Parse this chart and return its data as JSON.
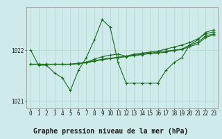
{
  "title": "Graphe pression niveau de la mer (hPa)",
  "background_color": "#ceeaea",
  "label_bg_color": "#a8d8c8",
  "line_color": "#1a6b1a",
  "ylim": [
    1020.85,
    1022.85
  ],
  "xlim": [
    -0.5,
    23.5
  ],
  "yticks": [
    1021,
    1022
  ],
  "xticks": [
    0,
    1,
    2,
    3,
    4,
    5,
    6,
    7,
    8,
    9,
    10,
    11,
    12,
    13,
    14,
    15,
    16,
    17,
    18,
    19,
    20,
    21,
    22,
    23
  ],
  "series": [
    {
      "x": [
        0,
        1,
        2,
        3,
        4,
        5,
        6,
        7,
        8,
        9,
        10,
        11,
        12,
        13,
        14,
        15,
        16,
        17,
        18,
        19,
        20,
        21,
        22,
        23
      ],
      "y": [
        1022.0,
        1021.7,
        1021.7,
        1021.55,
        1021.45,
        1021.2,
        1021.6,
        1021.85,
        1022.2,
        1022.6,
        1022.45,
        1021.75,
        1021.35,
        1021.35,
        1021.35,
        1021.35,
        1021.35,
        1021.6,
        1021.75,
        1021.85,
        1022.1,
        1022.2,
        1022.35,
        1022.4
      ]
    },
    {
      "x": [
        0,
        1,
        2,
        3,
        4,
        5,
        6,
        7,
        8,
        9,
        10,
        11,
        12,
        13,
        14,
        15,
        16,
        17,
        18,
        19,
        20,
        21,
        22,
        23
      ],
      "y": [
        1021.72,
        1021.72,
        1021.72,
        1021.72,
        1021.72,
        1021.72,
        1021.74,
        1021.76,
        1021.79,
        1021.82,
        1021.84,
        1021.86,
        1021.88,
        1021.9,
        1021.92,
        1021.94,
        1021.96,
        1021.98,
        1022.0,
        1022.02,
        1022.1,
        1022.15,
        1022.28,
        1022.32
      ]
    },
    {
      "x": [
        0,
        1,
        2,
        3,
        4,
        5,
        6,
        7,
        8,
        9,
        10,
        11,
        12,
        13,
        14,
        15,
        16,
        17,
        18,
        19,
        20,
        21,
        22,
        23
      ],
      "y": [
        1021.72,
        1021.72,
        1021.72,
        1021.72,
        1021.72,
        1021.72,
        1021.74,
        1021.76,
        1021.82,
        1021.87,
        1021.9,
        1021.92,
        1021.88,
        1021.92,
        1021.94,
        1021.96,
        1021.98,
        1022.02,
        1022.06,
        1022.1,
        1022.15,
        1022.22,
        1022.32,
        1022.36
      ]
    },
    {
      "x": [
        0,
        1,
        2,
        3,
        4,
        5,
        6,
        7,
        8,
        9,
        10,
        11,
        12,
        13,
        14,
        15,
        16,
        17,
        18,
        19,
        20,
        21,
        22,
        23
      ],
      "y": [
        1021.72,
        1021.72,
        1021.72,
        1021.72,
        1021.72,
        1021.72,
        1021.73,
        1021.75,
        1021.78,
        1021.81,
        1021.83,
        1021.85,
        1021.87,
        1021.89,
        1021.91,
        1021.93,
        1021.94,
        1021.96,
        1021.99,
        1022.01,
        1022.07,
        1022.12,
        1022.25,
        1022.3
      ]
    }
  ],
  "grid_color": "#b0d8cc",
  "grid_major_color": "#9ecebe",
  "tick_fontsize": 5.5,
  "label_fontsize": 7.0
}
